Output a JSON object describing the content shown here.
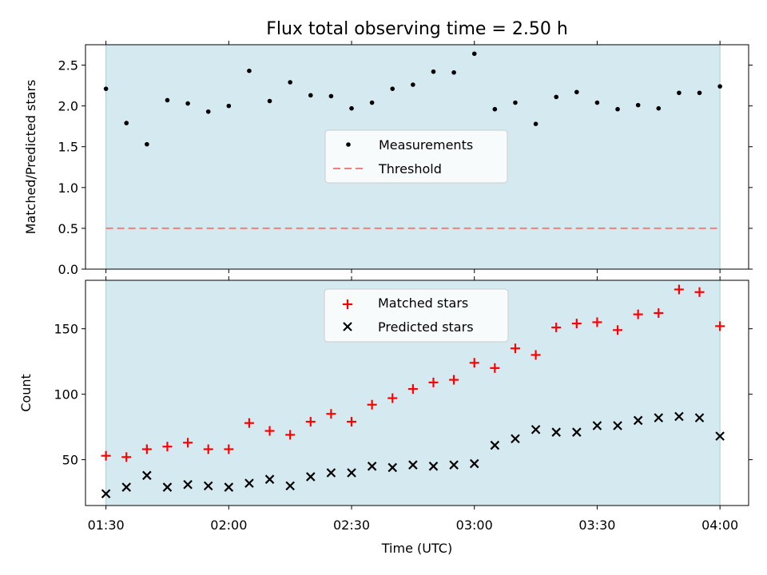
{
  "chart_data": [
    {
      "type": "scatter",
      "title": "Flux total observing time = 2.50 h",
      "ylabel": "Matched/Predicted stars",
      "xlabel": "",
      "ylim": [
        0,
        2.75
      ],
      "yticks": [
        0.0,
        0.5,
        1.0,
        1.5,
        2.0,
        2.5
      ],
      "ytick_labels": [
        "0.0",
        "0.5",
        "1.0",
        "1.5",
        "2.0",
        "2.5"
      ],
      "x_minutes": [
        90,
        95,
        100,
        105,
        110,
        115,
        120,
        125,
        130,
        135,
        140,
        145,
        150,
        155,
        160,
        165,
        170,
        175,
        180,
        185,
        190,
        195,
        200,
        205,
        210,
        215,
        220,
        225,
        230,
        235,
        240
      ],
      "shaded_span": {
        "from": "01:30",
        "to": "04:00",
        "color": "#d4eaf0"
      },
      "series": [
        {
          "name": "Measurements",
          "marker": "dot",
          "color": "#000000",
          "values": [
            2.21,
            1.79,
            1.53,
            2.07,
            2.03,
            1.93,
            2.0,
            2.43,
            2.06,
            2.29,
            2.13,
            2.12,
            1.97,
            2.04,
            2.21,
            2.26,
            2.42,
            2.41,
            2.64,
            1.96,
            2.04,
            1.78,
            2.11,
            2.17,
            2.04,
            1.96,
            2.01,
            1.97,
            2.16,
            2.16,
            2.24
          ]
        },
        {
          "name": "Threshold",
          "marker": "dashed-line",
          "color": "#f08080",
          "y": 0.5
        }
      ],
      "legend": {
        "position": "center",
        "entries": [
          "Measurements",
          "Threshold"
        ]
      }
    },
    {
      "type": "scatter",
      "title": "",
      "ylabel": "Count",
      "xlabel": "Time (UTC)",
      "ylim": [
        15,
        187
      ],
      "yticks": [
        50,
        100,
        150
      ],
      "ytick_labels": [
        "50",
        "100",
        "150"
      ],
      "xticks": [
        "01:30",
        "02:00",
        "02:30",
        "03:00",
        "03:30",
        "04:00"
      ],
      "x_minutes": [
        90,
        95,
        100,
        105,
        110,
        115,
        120,
        125,
        130,
        135,
        140,
        145,
        150,
        155,
        160,
        165,
        170,
        175,
        180,
        185,
        190,
        195,
        200,
        205,
        210,
        215,
        220,
        225,
        230,
        235,
        240
      ],
      "shaded_span": {
        "from": "01:30",
        "to": "04:00",
        "color": "#d4eaf0"
      },
      "series": [
        {
          "name": "Matched stars",
          "marker": "plus",
          "color": "#ff0000",
          "values": [
            53,
            52,
            58,
            60,
            63,
            58,
            58,
            78,
            72,
            69,
            79,
            85,
            79,
            92,
            97,
            104,
            109,
            111,
            124,
            120,
            135,
            130,
            151,
            154,
            155,
            149,
            161,
            162,
            180,
            178,
            152
          ]
        },
        {
          "name": "Predicted stars",
          "marker": "x",
          "color": "#000000",
          "values": [
            24,
            29,
            38,
            29,
            31,
            30,
            29,
            32,
            35,
            30,
            37,
            40,
            40,
            45,
            44,
            46,
            45,
            46,
            47,
            61,
            66,
            73,
            71,
            71,
            76,
            76,
            80,
            82,
            83,
            82,
            68
          ]
        }
      ],
      "legend": {
        "position": "upper center",
        "entries": [
          "Matched stars",
          "Predicted stars"
        ]
      }
    }
  ]
}
